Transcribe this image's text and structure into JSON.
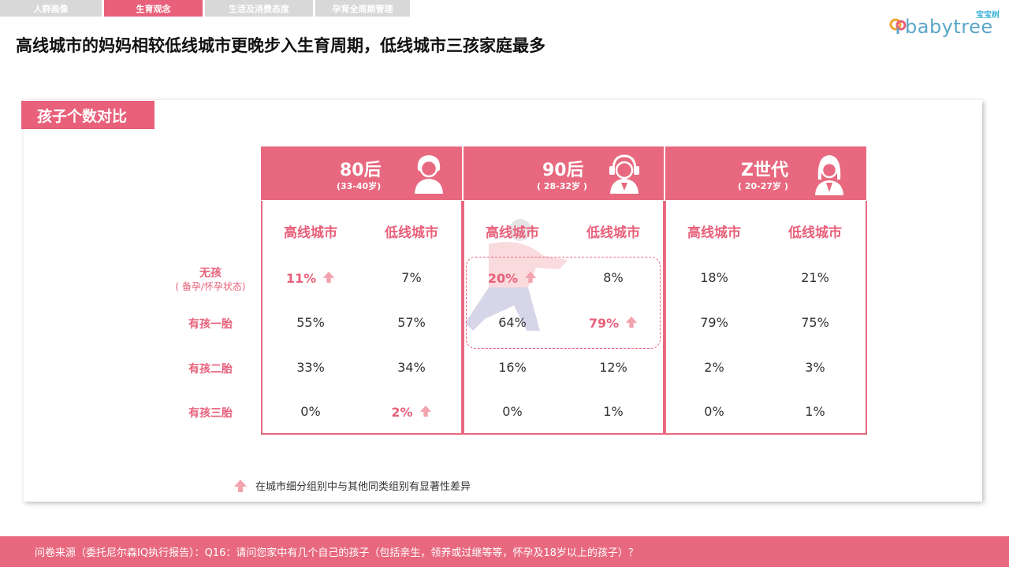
{
  "tabs": [
    "人群画像",
    "生育观念",
    "生活及消费态度",
    "孕育全周期管理"
  ],
  "logo": {
    "cn": "宝宝树",
    "en": "babytree"
  },
  "title": "高线城市的妈妈相较低线城市更晚步入生育周期，低线城市三孩家庭最多",
  "section": "孩子个数对比",
  "groups": [
    {
      "name": "80后",
      "age": "(33-40岁)",
      "icon": "woman-short-hair-icon"
    },
    {
      "name": "90后",
      "age": "( 28-32岁 )",
      "icon": "woman-headphones-icon"
    },
    {
      "name": "Z世代",
      "age": "( 20-27岁 )",
      "icon": "woman-long-hair-icon"
    }
  ],
  "subheaders": [
    "高线城市",
    "低线城市",
    "高线城市",
    "低线城市",
    "高线城市",
    "低线城市"
  ],
  "rows": [
    {
      "label": "无孩",
      "note": "( 备孕/怀孕状态)",
      "values": [
        "11%",
        "7%",
        "20%",
        "8%",
        "18%",
        "21%"
      ]
    },
    {
      "label": "有孩一胎",
      "values": [
        "55%",
        "57%",
        "64%",
        "79%",
        "79%",
        "75%"
      ]
    },
    {
      "label": "有孩二胎",
      "values": [
        "33%",
        "34%",
        "16%",
        "12%",
        "2%",
        "3%"
      ]
    },
    {
      "label": "有孩三胎",
      "values": [
        "0%",
        "2%",
        "0%",
        "1%",
        "0%",
        "1%"
      ]
    }
  ],
  "highlights": [
    "0-0",
    "0-2",
    "1-3",
    "3-1"
  ],
  "colors": {
    "accent": "#e8607a",
    "header": "#e8697f",
    "tab_inactive": "#d8d8d8"
  },
  "legend": "在城市细分组别中与其他同类组别有显著性差异",
  "footer": "问卷来源（委托尼尔森IQ执行报告）：Q16：请问您家中有几个自己的孩子（包括亲生，领养或过继等等，怀孕及18岁以上的孩子）？"
}
